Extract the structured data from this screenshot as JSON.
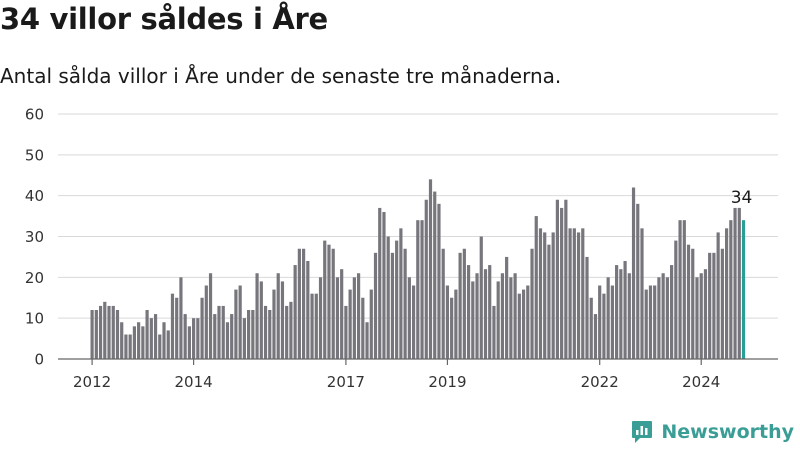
{
  "title": "34 villor såldes i Åre",
  "subtitle": "Antal sålda villor i Åre under de senaste tre månaderna.",
  "brand": "Newsworthy",
  "colors": {
    "bar": "#77767c",
    "highlight": "#2a9d94",
    "grid": "#d9d9d9",
    "axis": "#666666",
    "brand": "#3a9e96"
  },
  "chart_data": {
    "type": "bar",
    "title": "34 villor såldes i Åre",
    "subtitle": "Antal sålda villor i Åre under de senaste tre månaderna.",
    "xlabel": "",
    "ylabel": "",
    "ylim": [
      0,
      60
    ],
    "yticks": [
      "0",
      "10",
      "20",
      "30",
      "40",
      "50",
      "60"
    ],
    "xticks": [
      "2012",
      "2014",
      "2017",
      "2019",
      "2022",
      "2024"
    ],
    "grid": true,
    "start_date": "2012-01",
    "frequency": "monthly",
    "annotation": "34",
    "values": [
      12,
      12,
      13,
      14,
      13,
      13,
      12,
      9,
      6,
      6,
      8,
      9,
      8,
      12,
      10,
      11,
      6,
      9,
      7,
      16,
      15,
      20,
      11,
      8,
      10,
      10,
      15,
      18,
      21,
      11,
      13,
      13,
      9,
      11,
      17,
      18,
      10,
      12,
      12,
      21,
      19,
      13,
      12,
      17,
      21,
      19,
      13,
      14,
      23,
      27,
      27,
      24,
      16,
      16,
      20,
      29,
      28,
      27,
      20,
      22,
      13,
      17,
      20,
      21,
      15,
      9,
      17,
      26,
      37,
      36,
      30,
      26,
      29,
      32,
      27,
      20,
      18,
      34,
      34,
      39,
      44,
      41,
      38,
      27,
      18,
      15,
      17,
      26,
      27,
      23,
      19,
      21,
      30,
      22,
      23,
      13,
      19,
      21,
      25,
      20,
      21,
      16,
      17,
      18,
      27,
      35,
      32,
      31,
      28,
      31,
      39,
      37,
      39,
      32,
      32,
      31,
      32,
      25,
      15,
      11,
      18,
      16,
      20,
      18,
      23,
      22,
      24,
      21,
      42,
      38,
      32,
      17,
      18,
      18,
      20,
      21,
      20,
      23,
      29,
      34,
      34,
      28,
      27,
      20,
      21,
      22,
      26,
      26,
      31,
      27,
      32,
      34,
      37,
      37,
      34
    ]
  }
}
